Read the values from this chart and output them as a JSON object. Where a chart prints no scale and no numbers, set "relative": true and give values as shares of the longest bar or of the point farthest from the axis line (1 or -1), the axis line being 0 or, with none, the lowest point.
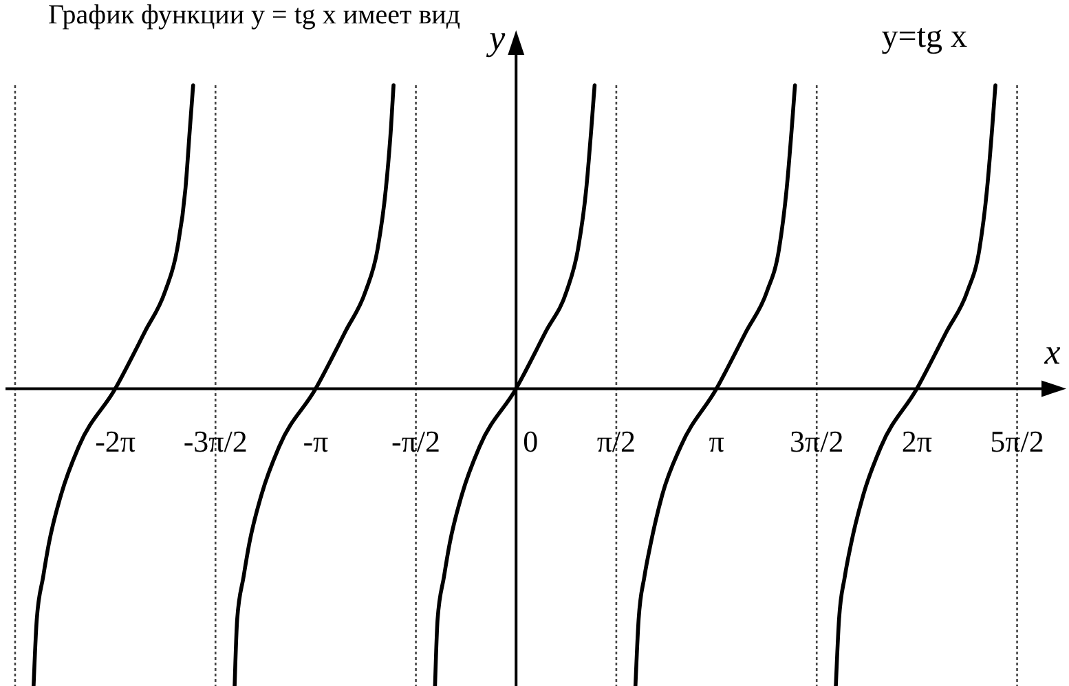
{
  "chart_data": {
    "type": "line",
    "title": "График функции y = tg x имеет вид",
    "xlabel": "x",
    "ylabel": "y",
    "relative": true,
    "tick_labels": "x",
    "line_style": "solid",
    "xlim": [
      -8.0,
      8.62
    ],
    "xticks": [
      {
        "value": -6.28,
        "label": "-2π"
      },
      {
        "value": -4.71,
        "label": "-3π/2"
      },
      {
        "value": -3.14,
        "label": "-π"
      },
      {
        "value": -1.57,
        "label": "-π/2"
      },
      0,
      {
        "value": 1.57,
        "label": "π/2"
      },
      {
        "value": 3.14,
        "label": "π"
      },
      {
        "value": 4.71,
        "label": "3π/2"
      },
      {
        "value": 6.28,
        "label": "2π"
      },
      {
        "value": 7.85,
        "label": "5π/2"
      }
    ],
    "series": [
      {
        "name": "y=tg x",
        "color": "#000000",
        "x": [
          -7.56,
          -7.51,
          -7.41,
          -7.32,
          -7.13,
          -6.85,
          -6.28,
          -5.81,
          -5.5,
          -5.31,
          -5.18,
          -5.11,
          -5.06,
          -4.71,
          -4.41,
          -4.37,
          -4.27,
          -4.18,
          -3.99,
          -3.71,
          -3.14,
          -2.67,
          -2.36,
          -2.17,
          -2.04,
          -1.96,
          -1.92,
          -1.57,
          -1.27,
          -1.23,
          -1.13,
          -1.04,
          -0.85,
          -0.57,
          0,
          0.47,
          0.79,
          0.97,
          1.1,
          1.18,
          1.23,
          1.57,
          1.87,
          1.92,
          2.01,
          2.11,
          2.29,
          2.58,
          3.14,
          3.61,
          3.93,
          4.12,
          4.24,
          4.32,
          4.37,
          4.71,
          5.01,
          5.06,
          5.15,
          5.25,
          5.44,
          5.72,
          6.28,
          6.75,
          7.07,
          7.26,
          7.38,
          7.46,
          7.51
        ],
        "values": [
          -0.98,
          -0.76,
          -0.62,
          -0.51,
          -0.35,
          -0.19,
          0,
          0.19,
          0.32,
          0.46,
          0.66,
          0.86,
          1,
          null,
          -0.98,
          -0.76,
          -0.62,
          -0.51,
          -0.35,
          -0.19,
          0,
          0.19,
          0.32,
          0.46,
          0.66,
          0.86,
          1,
          null,
          -0.98,
          -0.76,
          -0.62,
          -0.51,
          -0.35,
          -0.19,
          0,
          0.19,
          0.32,
          0.46,
          0.66,
          0.86,
          1,
          null,
          -0.98,
          -0.76,
          -0.62,
          -0.51,
          -0.35,
          -0.19,
          0,
          0.19,
          0.32,
          0.46,
          0.66,
          0.86,
          1,
          null,
          -0.98,
          -0.76,
          -0.62,
          -0.51,
          -0.35,
          -0.19,
          0,
          0.19,
          0.32,
          0.46,
          0.66,
          0.86,
          1
        ]
      }
    ],
    "ref_lines": [
      {
        "axis": "x",
        "value": -7.85,
        "color": "#444444",
        "line_style": "dotted"
      },
      {
        "axis": "x",
        "value": -4.71,
        "color": "#444444",
        "line_style": "dotted"
      },
      {
        "axis": "x",
        "value": -1.57,
        "color": "#444444",
        "line_style": "dotted"
      },
      {
        "axis": "x",
        "value": 1.57,
        "color": "#444444",
        "line_style": "dotted"
      },
      {
        "axis": "x",
        "value": 4.71,
        "color": "#444444",
        "line_style": "dotted"
      },
      {
        "axis": "x",
        "value": 7.85,
        "color": "#444444",
        "line_style": "dotted"
      }
    ]
  }
}
